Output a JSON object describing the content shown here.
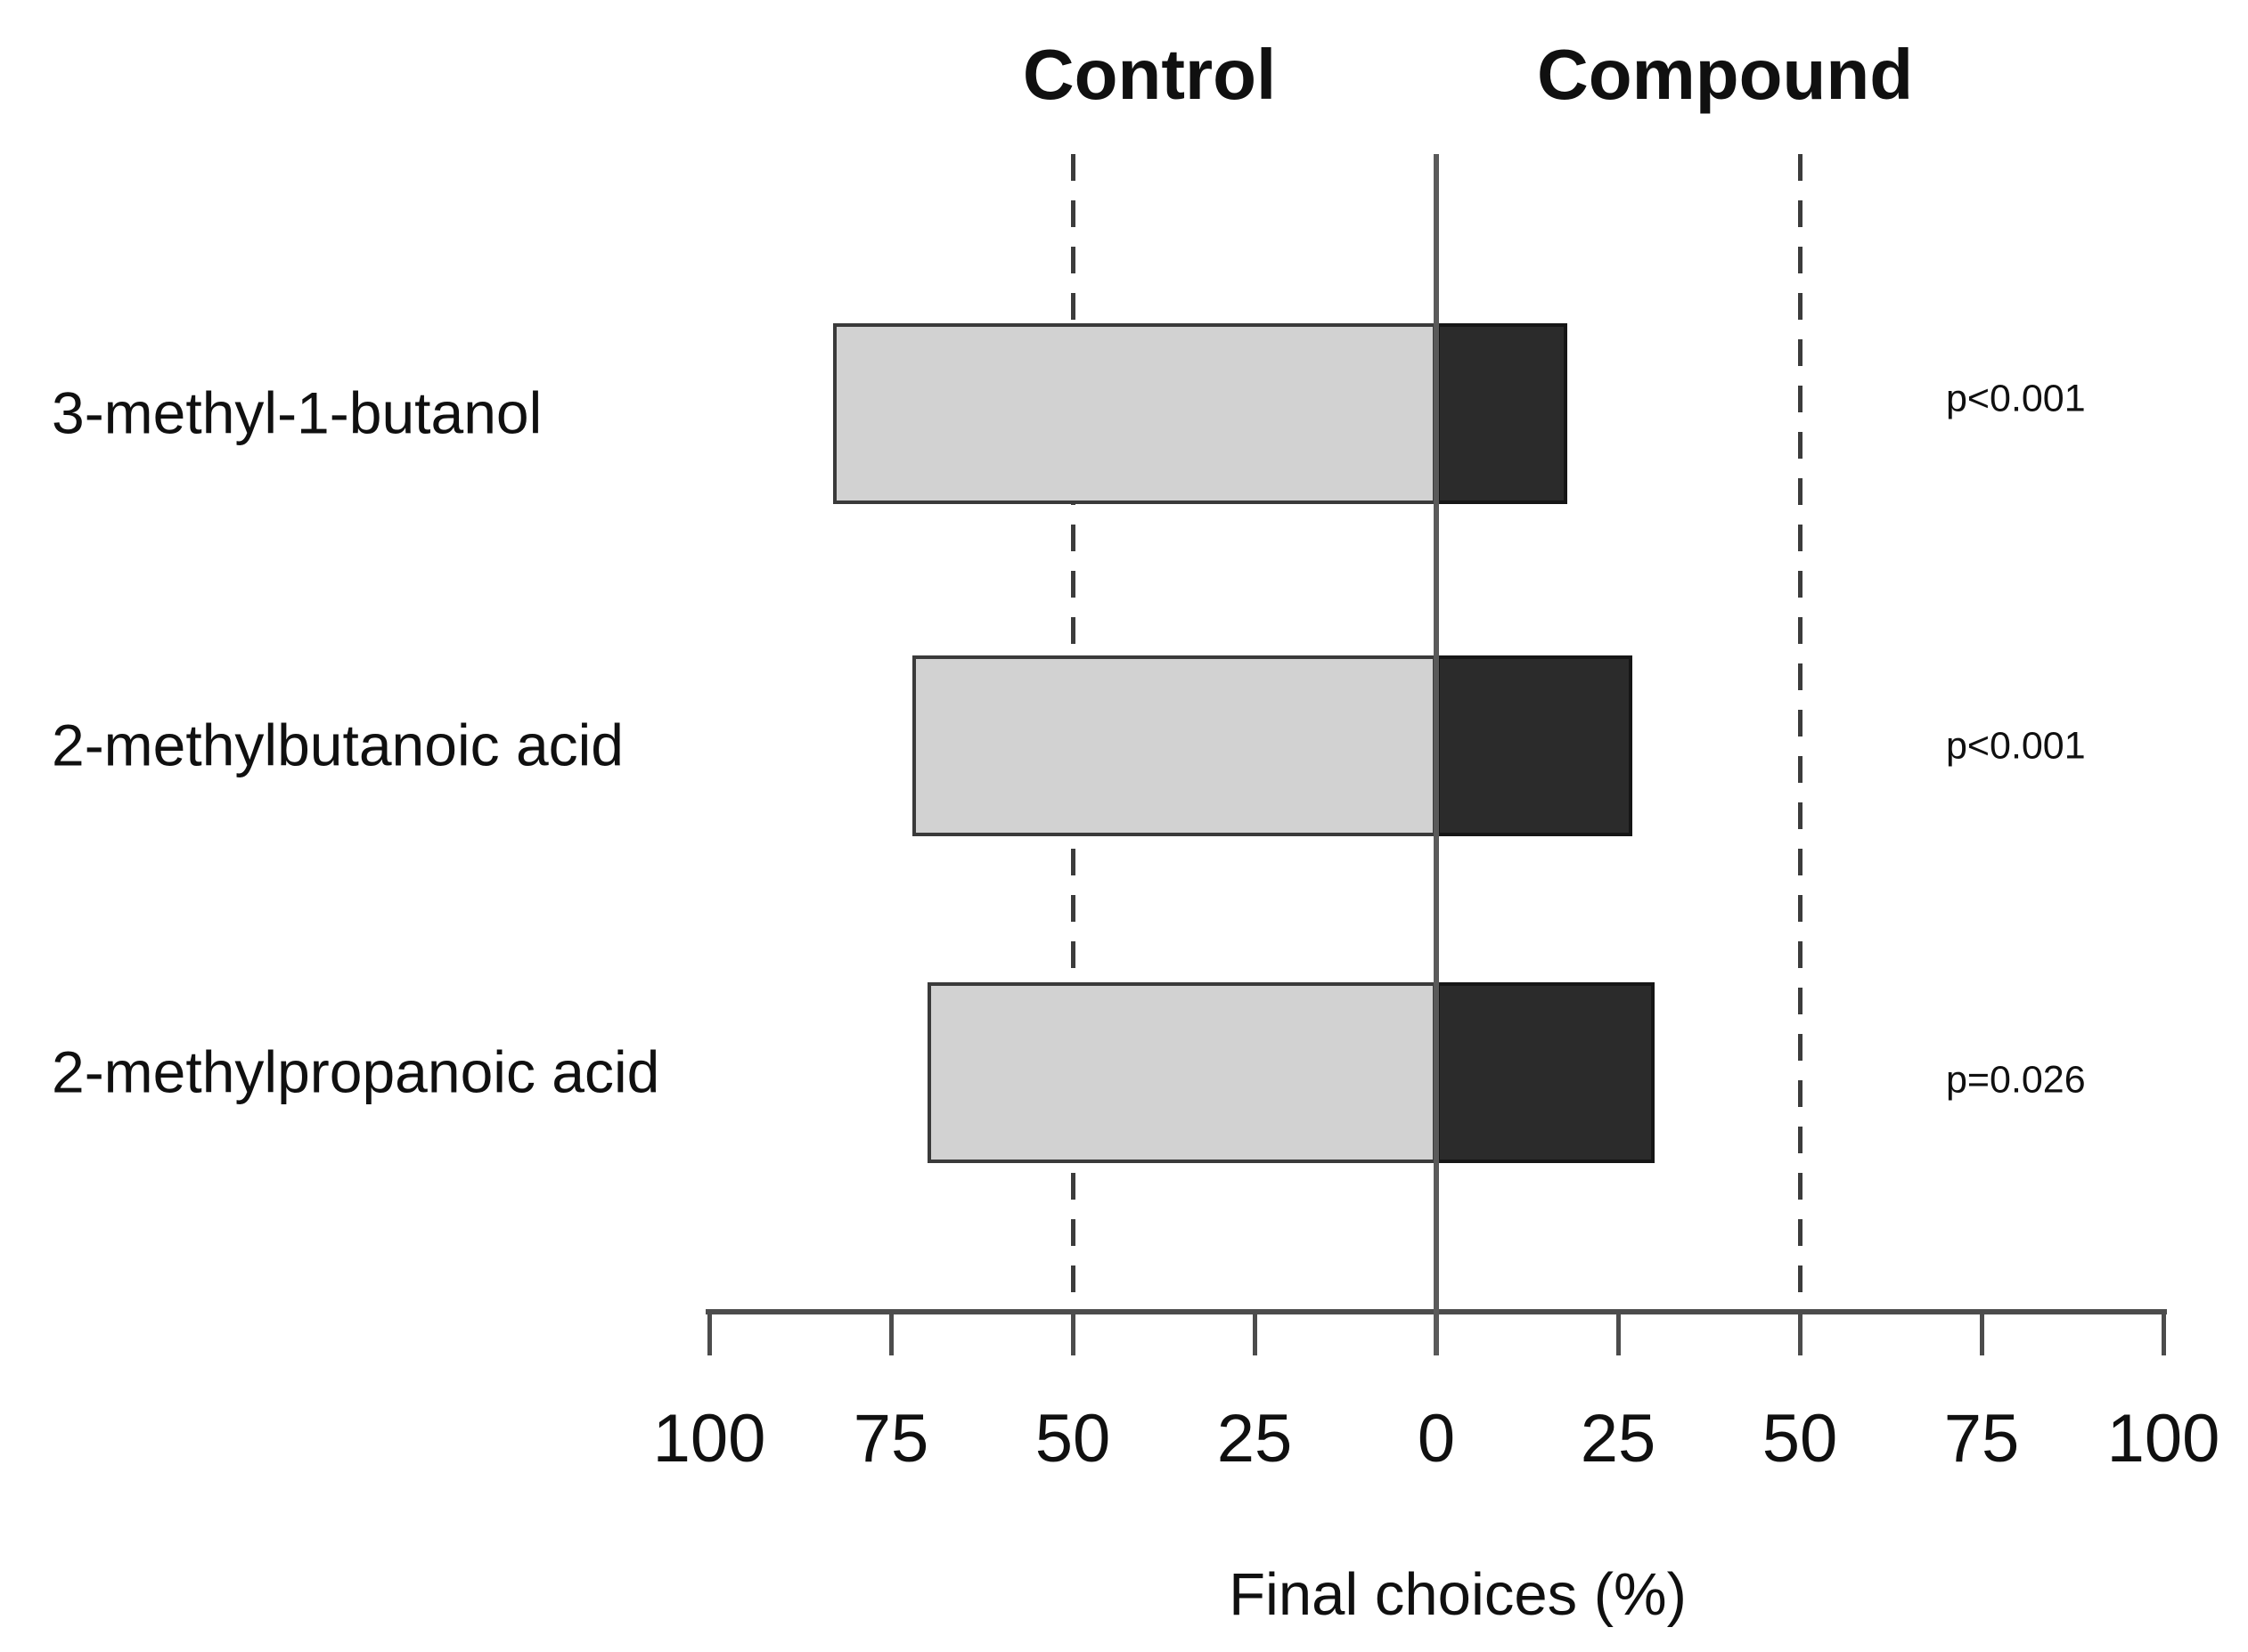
{
  "chart_data": {
    "type": "bar",
    "variant": "diverging-horizontal",
    "column_headers": {
      "left": "Control",
      "right": "Compound"
    },
    "xlabel": "Final choices (%)",
    "categories": [
      "3-methyl-1-butanol",
      "2-methylbutanoic acid",
      "2-methylpropanoic acid"
    ],
    "series": [
      {
        "name": "Control",
        "side": "left",
        "values": [
          83,
          72,
          70
        ]
      },
      {
        "name": "Compound",
        "side": "right",
        "values": [
          18,
          27,
          30
        ]
      }
    ],
    "annotations": {
      "p_values": [
        "p<0.001",
        "p<0.001",
        "p=0.026"
      ]
    },
    "x_axis": {
      "tick_labels": [
        "100",
        "75",
        "50",
        "25",
        "0",
        "25",
        "50",
        "75",
        "100"
      ],
      "tick_values": [
        -100,
        -75,
        -50,
        -25,
        0,
        25,
        50,
        75,
        100
      ],
      "range": [
        -100,
        100
      ]
    },
    "guides": {
      "zero_line": 0,
      "dashed_lines": [
        -50,
        50
      ]
    },
    "grid": false,
    "legend_position": "column headers above plot"
  },
  "colors": {
    "background": "#ffffff",
    "control_bar_fill": "#d2d2d2",
    "control_bar_border": "#3a3a3a",
    "compound_bar_fill": "#2b2b2b",
    "compound_bar_border": "#161616",
    "axis_line": "#4c4c4c",
    "zero_line": "#5a5a5a",
    "dashed_line": "#3c3c3c",
    "text": "#101010"
  }
}
